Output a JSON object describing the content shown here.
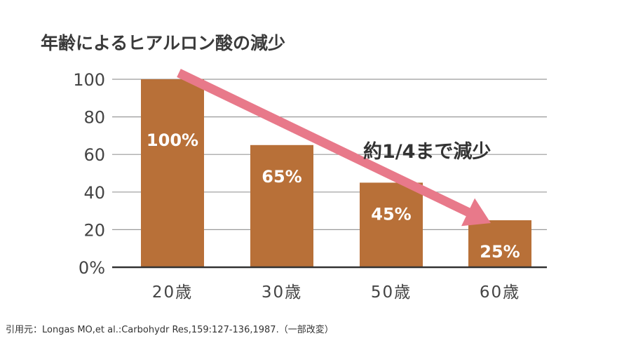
{
  "colors": {
    "bar": "#b87038",
    "arrow": "#e8798a",
    "grid": "#9a9a9a",
    "axis": "#333333"
  },
  "chart_data": {
    "type": "bar",
    "title": "年齢によるヒアルロン酸の減少",
    "categories": [
      "20歳",
      "30歳",
      "50歳",
      "60歳"
    ],
    "values": [
      100,
      65,
      45,
      25
    ],
    "data_labels": [
      "100%",
      "65%",
      "45%",
      "25%"
    ],
    "y_ticks": [
      "0%",
      "20",
      "40",
      "60",
      "80",
      "100"
    ],
    "y_tick_values": [
      0,
      20,
      40,
      60,
      80,
      100
    ],
    "ylim": [
      0,
      100
    ],
    "xlabel": "",
    "ylabel": "",
    "grid": true,
    "legend": "none",
    "annotation": "約1/4まで減少",
    "source": "引用元：Longas MO,et al.:Carbohydr Res,159:127-136,1987.（一部改変）"
  }
}
